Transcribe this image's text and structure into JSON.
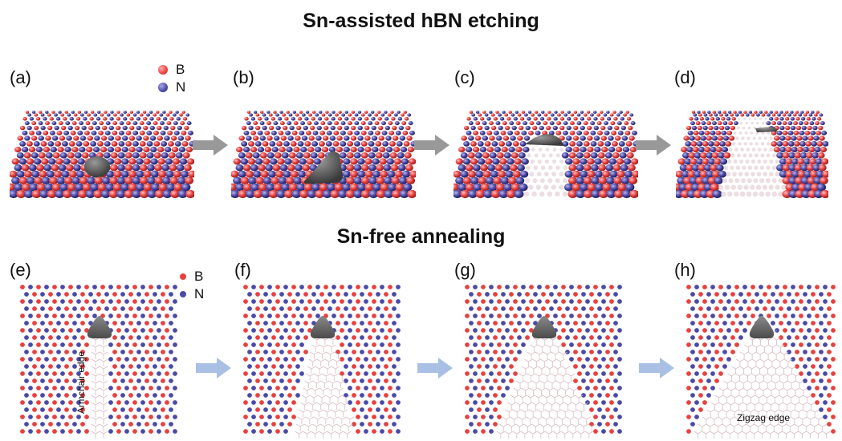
{
  "top_title": "Sn-assisted hBN etching",
  "bottom_title": "Sn-free annealing",
  "legend": {
    "boron_label": "B",
    "nitrogen_label": "N",
    "boron_color": "#e8413f",
    "nitrogen_color": "#4a4aa8"
  },
  "top_panels": [
    {
      "label": "(a)",
      "stage": "particle"
    },
    {
      "label": "(b)",
      "stage": "particle-faceted"
    },
    {
      "label": "(c)",
      "stage": "etching-channel"
    },
    {
      "label": "(d)",
      "stage": "long-channel"
    }
  ],
  "bottom_panels": [
    {
      "label": "(e)",
      "stage": 0.0
    },
    {
      "label": "(f)",
      "stage": 0.33
    },
    {
      "label": "(g)",
      "stage": 0.66
    },
    {
      "label": "(h)",
      "stage": 1.0
    }
  ],
  "annotations": {
    "armchair_edge": "Armchair edge",
    "zigzag_edge": "Zigzag edge"
  },
  "colors": {
    "particle": "#5a5a5a",
    "top_arrow": "#999999",
    "bottom_arrow": "#a9bfe3",
    "bond": "#d7b6bd"
  }
}
